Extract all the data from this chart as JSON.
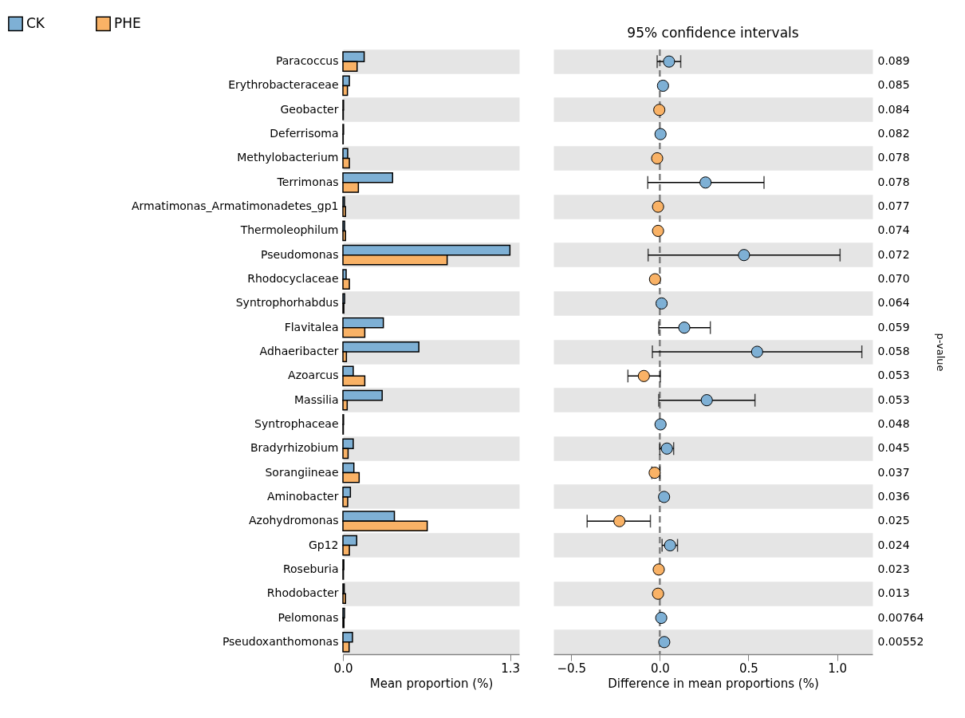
{
  "chart_data": [
    {
      "type": "bar",
      "orientation": "horizontal",
      "xlabel": "Mean proportion (%)",
      "legend": "top left",
      "grid": "y",
      "categories": [
        "Paracoccus",
        "Erythrobacteraceae",
        "Geobacter",
        "Deferrisoma",
        "Methylobacterium",
        "Terrimonas",
        "Armatimonas_Armatimonadetes_gp1",
        "Thermoleophilum",
        "Pseudomonas",
        "Rhodocyclaceae",
        "Syntrophorhabdus",
        "Flavitalea",
        "Adhaeribacter",
        "Azoarcus",
        "Massilia",
        "Syntrophaceae",
        "Bradyrhizobium",
        "Sorangiineae",
        "Aminobacter",
        "Azohydromonas",
        "Gp12",
        "Roseburia",
        "Rhodobacter",
        "Pelomonas",
        "Pseudoxanthomonas"
      ],
      "series": [
        {
          "name": "CK",
          "color": "#7eb0d5",
          "values": [
            0.165,
            0.05,
            0.005,
            0.005,
            0.037,
            0.386,
            0.012,
            0.013,
            1.298,
            0.025,
            0.013,
            0.314,
            0.59,
            0.08,
            0.305,
            0.005,
            0.08,
            0.085,
            0.058,
            0.4,
            0.107,
            0.007,
            0.01,
            0.012,
            0.074
          ]
        },
        {
          "name": "PHE",
          "color": "#f9b266",
          "values": [
            0.11,
            0.035,
            0.003,
            0.002,
            0.05,
            0.12,
            0.02,
            0.02,
            0.81,
            0.05,
            0.007,
            0.17,
            0.027,
            0.17,
            0.033,
            0.003,
            0.04,
            0.126,
            0.037,
            0.655,
            0.05,
            0.004,
            0.02,
            0.008,
            0.048
          ]
        }
      ],
      "xlim": [
        0,
        1.37
      ],
      "xticks": [
        {
          "value": 0,
          "label": "0.0"
        },
        1.3
      ]
    },
    {
      "type": "scatter",
      "orientation": "horizontal",
      "title": "95% confidence intervals",
      "xlabel": "Difference in mean proportions (%)",
      "y2label": "p-value",
      "grid": "y",
      "categories": [
        "0.089",
        "0.085",
        "0.084",
        "0.082",
        "0.078",
        "0.078",
        "0.077",
        "0.074",
        "0.072",
        "0.070",
        "0.064",
        "0.059",
        "0.058",
        "0.053",
        "0.053",
        "0.048",
        "0.045",
        "0.037",
        "0.036",
        "0.025",
        "0.024",
        "0.023",
        "0.013",
        "0.00764",
        "0.00552"
      ],
      "values": [
        0.052,
        0.018,
        -0.003,
        0.004,
        -0.015,
        0.258,
        -0.01,
        -0.01,
        0.475,
        -0.027,
        0.01,
        0.138,
        0.549,
        -0.09,
        0.265,
        0.004,
        0.04,
        -0.029,
        0.024,
        -0.228,
        0.058,
        -0.006,
        -0.01,
        0.008,
        0.025
      ],
      "colors": [
        "#7eb0d5",
        "#7eb0d5",
        "#f9b266",
        "#7eb0d5",
        "#f9b266",
        "#7eb0d5",
        "#f9b266",
        "#f9b266",
        "#7eb0d5",
        "#f9b266",
        "#7eb0d5",
        "#7eb0d5",
        "#7eb0d5",
        "#f9b266",
        "#7eb0d5",
        "#7eb0d5",
        "#7eb0d5",
        "#f9b266",
        "#7eb0d5",
        "#f9b266",
        "#7eb0d5",
        "#f9b266",
        "#f9b266",
        "#7eb0d5",
        "#7eb0d5"
      ],
      "errors": [
        [
          -0.015,
          0.118
        ],
        null,
        null,
        null,
        null,
        [
          -0.068,
          0.588
        ],
        null,
        null,
        [
          -0.066,
          1.017
        ],
        null,
        null,
        [
          -0.006,
          0.285
        ],
        [
          -0.042,
          1.14
        ],
        [
          -0.18,
          0.003
        ],
        [
          -0.006,
          0.537
        ],
        null,
        [
          0,
          0.078
        ],
        [
          -0.045,
          0
        ],
        null,
        [
          -0.41,
          -0.053
        ],
        [
          0.013,
          0.1
        ],
        null,
        null,
        null,
        null
      ],
      "xlim": [
        -0.6,
        1.2
      ],
      "xticks": [
        {
          "value": -0.5,
          "label": "−0.5"
        },
        {
          "value": 0,
          "label": "0.0"
        },
        {
          "value": 0.5,
          "label": "0.5"
        },
        {
          "value": 1,
          "label": "1.0"
        }
      ],
      "ref_lines": [
        {
          "axis": "x",
          "value": 0,
          "color": "#808080",
          "line_style": "dashed"
        }
      ]
    }
  ]
}
